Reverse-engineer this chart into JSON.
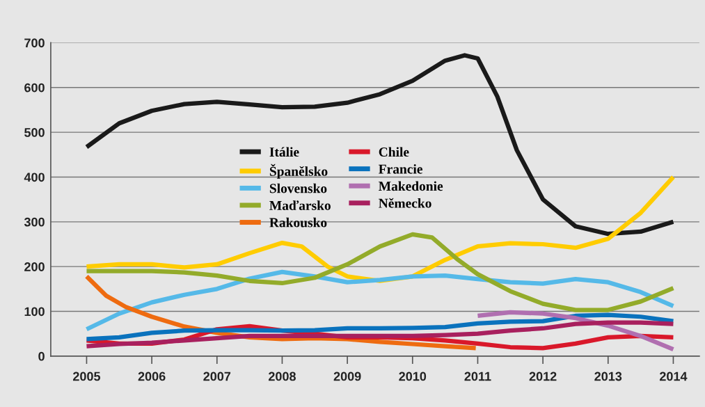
{
  "chart_data": {
    "type": "line",
    "xlim": [
      2004.45,
      2014.4
    ],
    "ylim": [
      0,
      700
    ],
    "xticks": [
      2005,
      2006,
      2007,
      2008,
      2009,
      2010,
      2011,
      2012,
      2013,
      2014
    ],
    "yticks": [
      0,
      100,
      200,
      300,
      400,
      500,
      600,
      700
    ],
    "grid": "y",
    "legend": "center",
    "marker": "none",
    "line_style": "solid",
    "series": [
      {
        "name": "Itálie",
        "color": "#1a1a1a",
        "x": [
          2005,
          2005.5,
          2006,
          2006.5,
          2007,
          2007.5,
          2008,
          2008.5,
          2009,
          2009.5,
          2010,
          2010.5,
          2010.8,
          2011,
          2011.3,
          2011.6,
          2012,
          2012.5,
          2013,
          2013.5,
          2014
        ],
        "values": [
          467,
          520,
          548,
          563,
          568,
          562,
          556,
          557,
          566,
          585,
          615,
          660,
          672,
          665,
          580,
          460,
          350,
          290,
          273,
          278,
          300
        ]
      },
      {
        "name": "Španělsko",
        "color": "#ffcc00",
        "x": [
          2005,
          2005.5,
          2006,
          2006.5,
          2007,
          2007.5,
          2008,
          2008.3,
          2008.7,
          2009,
          2009.5,
          2010,
          2010.5,
          2011,
          2011.5,
          2012,
          2012.5,
          2013,
          2013.5,
          2014
        ],
        "values": [
          200,
          205,
          205,
          198,
          205,
          230,
          253,
          245,
          200,
          178,
          168,
          178,
          215,
          245,
          252,
          250,
          242,
          262,
          320,
          400
        ]
      },
      {
        "name": "Slovensko",
        "color": "#55b9e8",
        "x": [
          2005,
          2005.5,
          2006,
          2006.5,
          2007,
          2007.5,
          2008,
          2008.5,
          2009,
          2009.5,
          2010,
          2010.5,
          2011,
          2011.5,
          2012,
          2012.5,
          2013,
          2013.5,
          2014
        ],
        "values": [
          60,
          95,
          120,
          137,
          150,
          173,
          188,
          178,
          165,
          170,
          178,
          180,
          172,
          165,
          162,
          172,
          165,
          143,
          112
        ]
      },
      {
        "name": "Maďarsko",
        "color": "#93ab2a",
        "x": [
          2005,
          2006,
          2006.5,
          2007,
          2007.5,
          2008,
          2008.5,
          2009,
          2009.5,
          2010,
          2010.3,
          2010.7,
          2011,
          2011.5,
          2012,
          2012.5,
          2013,
          2013.5,
          2014
        ],
        "values": [
          190,
          190,
          187,
          180,
          168,
          163,
          175,
          205,
          245,
          272,
          265,
          215,
          183,
          145,
          117,
          103,
          103,
          122,
          152
        ]
      },
      {
        "name": "Rakousko",
        "color": "#ee6b10",
        "x": [
          2005,
          2005.3,
          2005.6,
          2006,
          2006.5,
          2007,
          2007.5,
          2008,
          2008.5,
          2009,
          2009.5,
          2010,
          2010.5,
          2010.97
        ],
        "values": [
          178,
          135,
          110,
          88,
          66,
          52,
          42,
          38,
          40,
          38,
          32,
          27,
          22,
          18
        ]
      },
      {
        "name": "Chile",
        "color": "#d9182a",
        "x": [
          2005,
          2005.5,
          2006,
          2006.5,
          2007,
          2007.5,
          2008,
          2008.5,
          2009,
          2009.5,
          2010,
          2010.5,
          2011,
          2011.5,
          2012,
          2012.5,
          2013,
          2013.5,
          2014
        ],
        "values": [
          35,
          28,
          28,
          37,
          60,
          67,
          57,
          50,
          42,
          42,
          40,
          35,
          28,
          20,
          18,
          28,
          42,
          45,
          42
        ]
      },
      {
        "name": "Francie",
        "color": "#0a72bd",
        "x": [
          2005,
          2005.5,
          2006,
          2006.5,
          2007,
          2007.5,
          2008,
          2008.5,
          2009,
          2009.5,
          2010,
          2010.5,
          2011,
          2011.5,
          2012,
          2012.5,
          2013,
          2013.5,
          2014
        ],
        "values": [
          38,
          42,
          52,
          57,
          58,
          58,
          57,
          58,
          62,
          62,
          63,
          65,
          73,
          77,
          78,
          90,
          92,
          88,
          78
        ]
      },
      {
        "name": "Makedonie",
        "color": "#b06fb0",
        "x": [
          2011,
          2011.5,
          2012,
          2012.5,
          2013,
          2013.5,
          2014
        ],
        "values": [
          90,
          98,
          95,
          85,
          68,
          45,
          15
        ]
      },
      {
        "name": "Německo",
        "color": "#a8205e",
        "x": [
          2005,
          2005.5,
          2006,
          2006.5,
          2007,
          2007.5,
          2008,
          2008.5,
          2009,
          2009.5,
          2010,
          2010.5,
          2011,
          2011.5,
          2012,
          2012.5,
          2013,
          2013.5,
          2014
        ],
        "values": [
          22,
          27,
          30,
          35,
          40,
          45,
          45,
          45,
          45,
          45,
          45,
          47,
          50,
          57,
          62,
          72,
          75,
          75,
          72
        ]
      }
    ]
  }
}
